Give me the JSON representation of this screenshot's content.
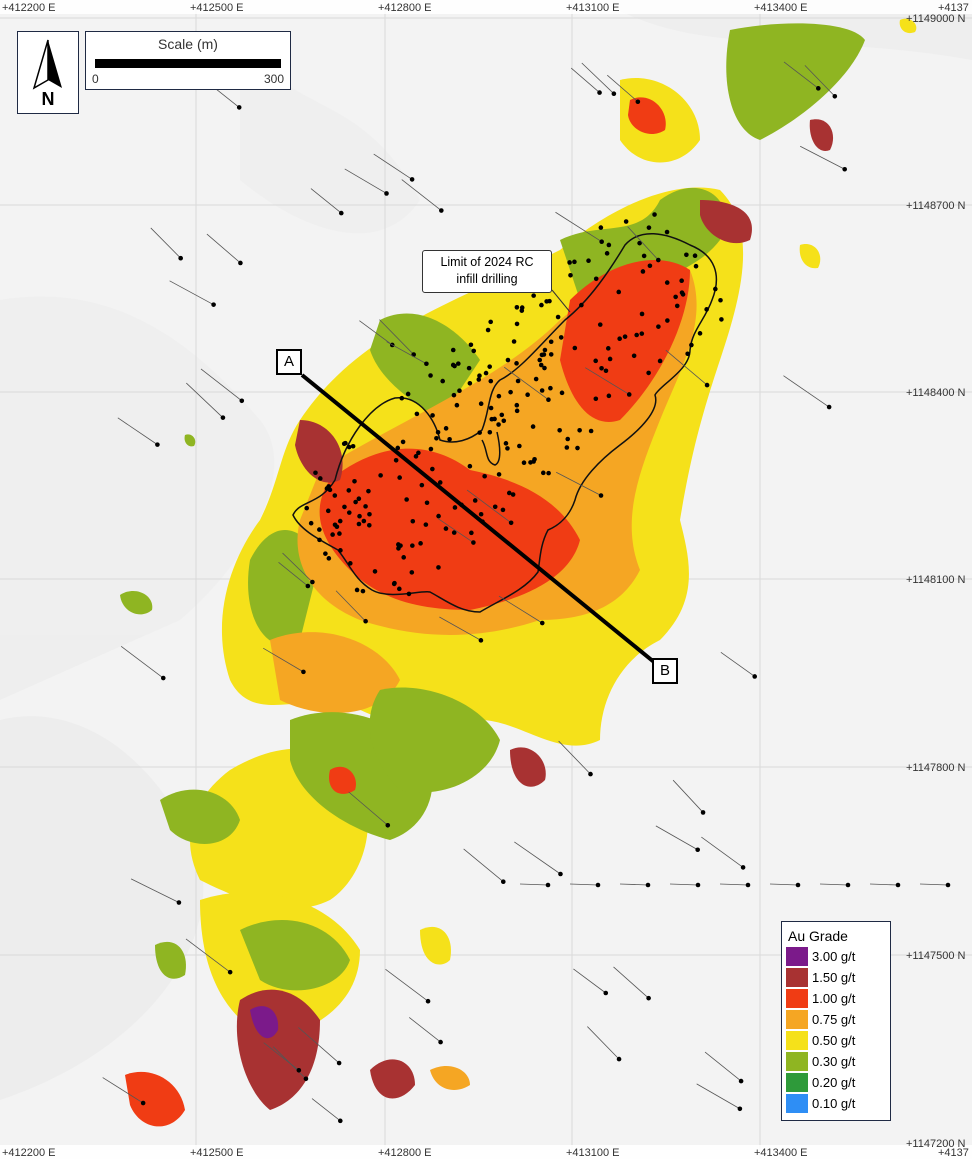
{
  "grid": {
    "easting_labels": [
      "+412200 E",
      "+412500 E",
      "+412800 E",
      "+413100 E",
      "+413400 E",
      "+4137"
    ],
    "northing_labels": [
      "+1149000 N",
      "+1148700 N",
      "+1148400 N",
      "+1148100 N",
      "+1147800 N",
      "+1147500 N",
      "+1147200 N"
    ],
    "northing_right_edge_extra": "+4137"
  },
  "north_arrow": {
    "letter": "N",
    "icon": "north-arrow-icon"
  },
  "scale": {
    "title": "Scale (m)",
    "min_label": "0",
    "max_label": "300"
  },
  "section_line": {
    "start_label": "A",
    "end_label": "B"
  },
  "callout": {
    "line1": "Limit of 2024 RC",
    "line2": "infill drilling"
  },
  "legend": {
    "title": "Au Grade",
    "items": [
      {
        "label": "3.00 g/t",
        "color": "#7b1a8a"
      },
      {
        "label": "1.50 g/t",
        "color": "#a83232"
      },
      {
        "label": "1.00 g/t",
        "color": "#f03c14"
      },
      {
        "label": "0.75 g/t",
        "color": "#f5a623"
      },
      {
        "label": "0.50 g/t",
        "color": "#f5e11a"
      },
      {
        "label": "0.30 g/t",
        "color": "#8fb522"
      },
      {
        "label": "0.20 g/t",
        "color": "#2e9a3a"
      },
      {
        "label": "0.10 g/t",
        "color": "#2e8ef5"
      }
    ],
    "extra_swatch_color": "#1a4cf0"
  }
}
